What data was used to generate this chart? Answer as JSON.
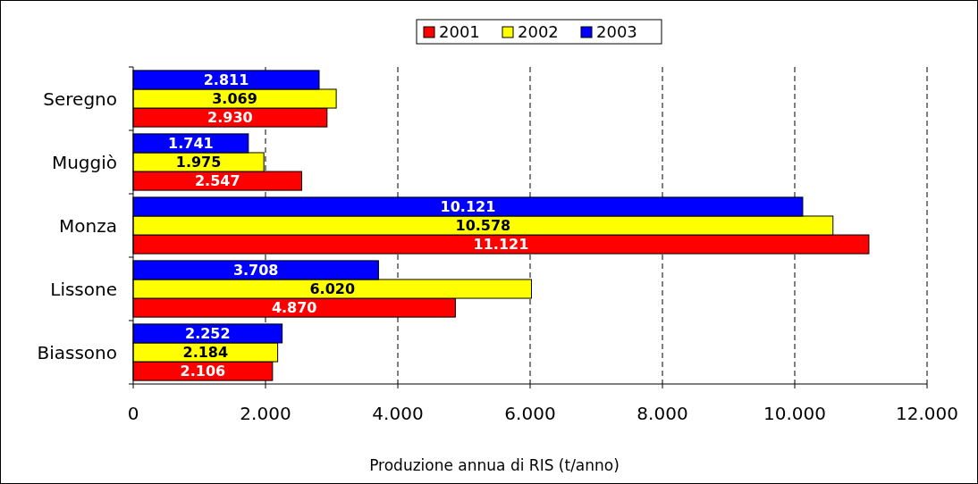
{
  "chart_data": {
    "type": "bar",
    "orientation": "horizontal",
    "xlabel": "Produzione annua di RIS (t/anno)",
    "categories": [
      "Seregno",
      "Muggiò",
      "Monza",
      "Lissone",
      "Biassono"
    ],
    "series": [
      {
        "name": "2001",
        "color": "#ff0000",
        "values": [
          2930,
          2547,
          11121,
          4870,
          2106
        ],
        "value_labels": [
          "2.930",
          "2.547",
          "11.121",
          "4.870",
          "2.106"
        ]
      },
      {
        "name": "2002",
        "color": "#ffff00",
        "values": [
          3069,
          1975,
          10578,
          6020,
          2184
        ],
        "value_labels": [
          "3.069",
          "1.975",
          "10.578",
          "6.020",
          "2.184"
        ]
      },
      {
        "name": "2003",
        "color": "#0000ff",
        "values": [
          2811,
          1741,
          10121,
          3708,
          2252
        ],
        "value_labels": [
          "2.811",
          "1.741",
          "10.121",
          "3.708",
          "2.252"
        ]
      }
    ],
    "xlim": [
      0,
      12000
    ],
    "xticks": [
      {
        "value": 0,
        "label": "0"
      },
      {
        "value": 2000,
        "label": "2.000"
      },
      {
        "value": 4000,
        "label": "4.000"
      },
      {
        "value": 6000,
        "label": "6.000"
      },
      {
        "value": 8000,
        "label": "8.000"
      },
      {
        "value": 10000,
        "label": "10.000"
      },
      {
        "value": 12000,
        "label": "12.000"
      }
    ],
    "grid": "x",
    "legend": "top"
  }
}
